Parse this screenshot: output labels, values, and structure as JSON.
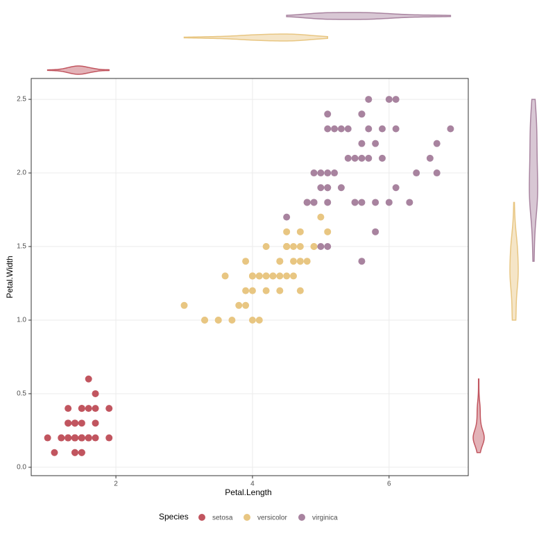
{
  "chart_data": {
    "type": "scatter",
    "x_label": "Petal.Length",
    "y_label": "Petal.Width",
    "legend_title": "Species",
    "xlim": [
      0.76,
      7.16
    ],
    "ylim": [
      -0.057,
      2.642
    ],
    "xticks": [
      2,
      4,
      6
    ],
    "yticks": [
      {
        "value": 0,
        "label": "0.0"
      },
      0.5,
      {
        "value": 1,
        "label": "1.0"
      },
      1.5,
      {
        "value": 2,
        "label": "2.0"
      },
      2.5
    ],
    "grid": true,
    "legend_position": "bottom",
    "marginal": "violin",
    "series": [
      {
        "name": "setosa",
        "color": "#c1555f",
        "x": [
          1.4,
          1.4,
          1.3,
          1.5,
          1.4,
          1.7,
          1.4,
          1.5,
          1.4,
          1.5,
          1.5,
          1.6,
          1.4,
          1.1,
          1.2,
          1.5,
          1.3,
          1.4,
          1.7,
          1.5,
          1.7,
          1.5,
          1.0,
          1.7,
          1.9,
          1.6,
          1.6,
          1.5,
          1.4,
          1.6,
          1.6,
          1.5,
          1.5,
          1.4,
          1.5,
          1.2,
          1.3,
          1.4,
          1.3,
          1.5,
          1.3,
          1.3,
          1.3,
          1.6,
          1.9,
          1.4,
          1.6,
          1.4,
          1.5,
          1.4
        ],
        "values": [
          0.2,
          0.2,
          0.2,
          0.2,
          0.2,
          0.4,
          0.3,
          0.2,
          0.2,
          0.1,
          0.2,
          0.2,
          0.1,
          0.1,
          0.2,
          0.4,
          0.4,
          0.3,
          0.3,
          0.3,
          0.2,
          0.4,
          0.2,
          0.5,
          0.2,
          0.2,
          0.4,
          0.2,
          0.2,
          0.2,
          0.2,
          0.4,
          0.1,
          0.2,
          0.2,
          0.2,
          0.2,
          0.1,
          0.2,
          0.2,
          0.3,
          0.3,
          0.2,
          0.6,
          0.4,
          0.3,
          0.2,
          0.2,
          0.2,
          0.2
        ]
      },
      {
        "name": "versicolor",
        "color": "#e8c682",
        "x": [
          4.7,
          4.5,
          4.9,
          4.0,
          4.6,
          4.5,
          4.7,
          3.3,
          4.6,
          3.9,
          3.5,
          4.2,
          4.0,
          4.7,
          3.6,
          4.4,
          4.5,
          4.1,
          4.5,
          3.9,
          4.8,
          4.0,
          4.9,
          4.7,
          4.3,
          4.4,
          4.8,
          5.0,
          4.5,
          3.5,
          3.8,
          3.7,
          3.9,
          5.1,
          4.5,
          4.5,
          4.7,
          4.4,
          4.1,
          4.0,
          4.4,
          4.6,
          4.0,
          3.3,
          4.2,
          4.2,
          4.2,
          4.3,
          3.0,
          4.1
        ],
        "values": [
          1.4,
          1.5,
          1.5,
          1.3,
          1.5,
          1.3,
          1.6,
          1.0,
          1.3,
          1.4,
          1.0,
          1.5,
          1.0,
          1.4,
          1.3,
          1.4,
          1.5,
          1.0,
          1.5,
          1.1,
          1.8,
          1.3,
          1.5,
          1.2,
          1.3,
          1.4,
          1.4,
          1.7,
          1.5,
          1.0,
          1.1,
          1.0,
          1.2,
          1.6,
          1.5,
          1.6,
          1.5,
          1.3,
          1.3,
          1.3,
          1.2,
          1.4,
          1.2,
          1.0,
          1.3,
          1.2,
          1.3,
          1.3,
          1.1,
          1.3
        ]
      },
      {
        "name": "virginica",
        "color": "#a8839f",
        "x": [
          6.0,
          5.1,
          5.9,
          5.6,
          5.8,
          6.6,
          4.5,
          6.3,
          5.8,
          6.1,
          5.1,
          5.3,
          5.5,
          5.0,
          5.1,
          5.3,
          5.5,
          6.7,
          6.9,
          5.0,
          5.7,
          4.9,
          6.7,
          4.9,
          5.7,
          6.0,
          4.8,
          4.9,
          5.6,
          5.8,
          6.1,
          6.4,
          5.6,
          5.1,
          5.6,
          6.1,
          5.6,
          5.5,
          4.8,
          5.4,
          5.6,
          5.1,
          5.1,
          5.9,
          5.7,
          5.2,
          5.0,
          5.2,
          5.4,
          5.1
        ],
        "values": [
          2.5,
          1.9,
          2.1,
          1.8,
          2.2,
          2.1,
          1.7,
          1.8,
          1.8,
          2.5,
          2.0,
          1.9,
          2.1,
          2.0,
          2.4,
          2.3,
          1.8,
          2.2,
          2.3,
          1.5,
          2.3,
          2.0,
          2.0,
          1.8,
          2.1,
          1.8,
          1.8,
          1.8,
          2.1,
          1.6,
          1.9,
          2.0,
          2.2,
          1.5,
          1.4,
          2.3,
          2.4,
          1.8,
          1.8,
          2.1,
          2.4,
          2.3,
          1.9,
          2.3,
          2.5,
          2.3,
          1.9,
          2.0,
          2.3,
          1.8
        ]
      }
    ]
  }
}
